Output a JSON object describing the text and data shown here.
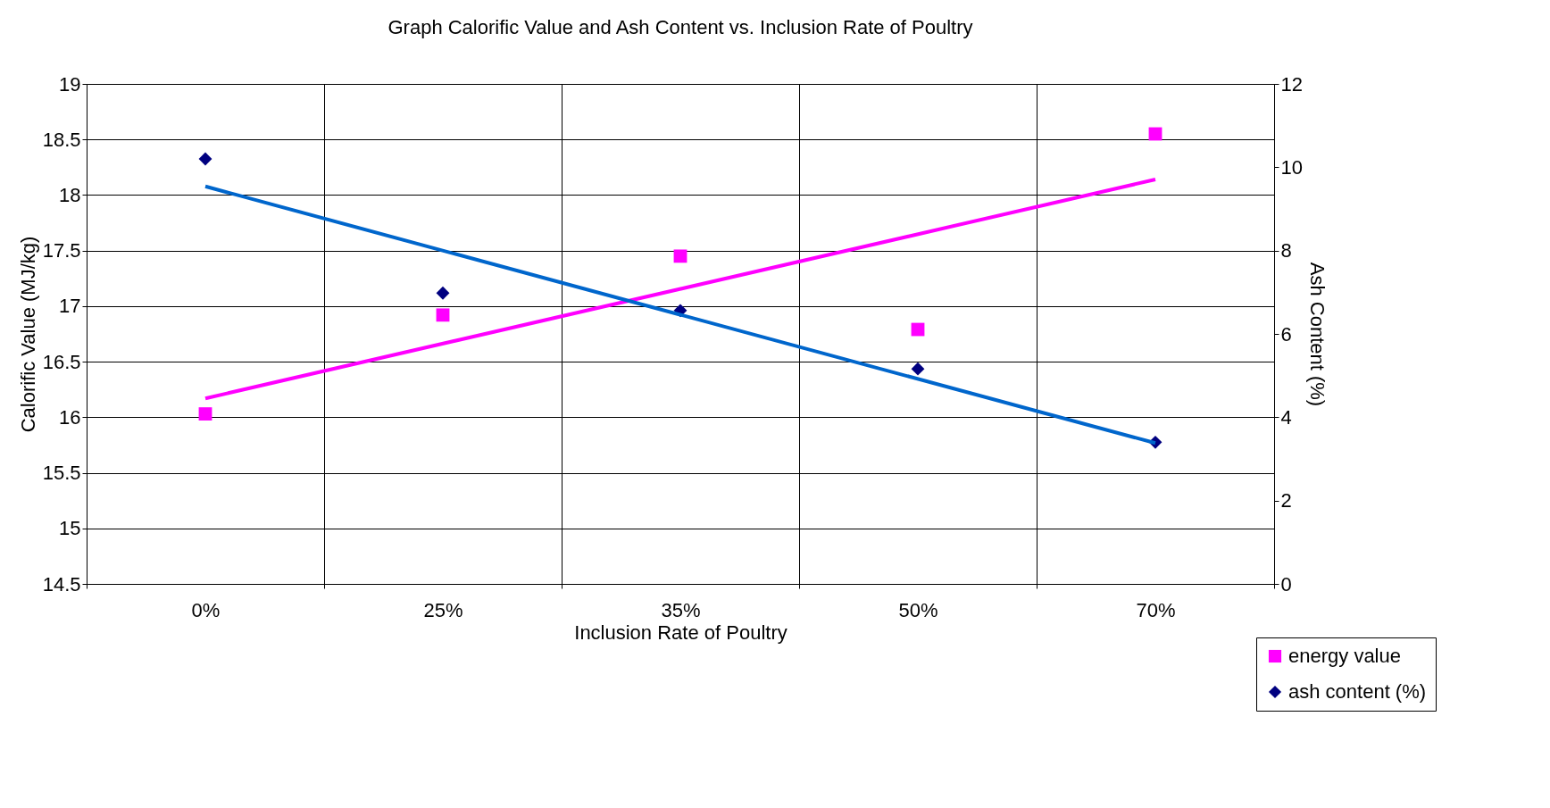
{
  "chart_data": {
    "type": "scatter",
    "title": "Graph Calorific Value and Ash Content vs. Inclusion Rate of Poultry",
    "xlabel": "Inclusion Rate of Poultry",
    "ylabel": "Calorific Value (MJ/kg)",
    "y2label": "Ash Content (%)",
    "categories": [
      "0%",
      "25%",
      "35%",
      "50%",
      "70%"
    ],
    "series": [
      {
        "name": "energy value",
        "marker": "square",
        "color": "#ff00ff",
        "values": [
          16.03,
          16.92,
          17.45,
          16.79,
          18.55
        ]
      },
      {
        "name": "ash content (%)",
        "marker": "diamond",
        "color": "#000080",
        "axis": "y2",
        "values": [
          10.2,
          6.98,
          6.56,
          5.16,
          3.4
        ]
      },
      {
        "type": "line",
        "color": "#ff00ff",
        "x": [
          "0%",
          "70%"
        ],
        "values": [
          16.17,
          18.14
        ]
      },
      {
        "type": "line",
        "color": "#0066cc",
        "axis": "y2",
        "x": [
          "0%",
          "70%"
        ],
        "values": [
          9.54,
          3.38
        ]
      }
    ],
    "ylim": [
      14.5,
      19
    ],
    "yticks": [
      14.5,
      15,
      15.5,
      16,
      16.5,
      17,
      17.5,
      18,
      18.5,
      19
    ],
    "y2lim": [
      0,
      12
    ],
    "y2ticks": [
      0,
      2,
      4,
      6,
      8,
      10,
      12
    ],
    "grid": true,
    "legend": "bottom right"
  }
}
